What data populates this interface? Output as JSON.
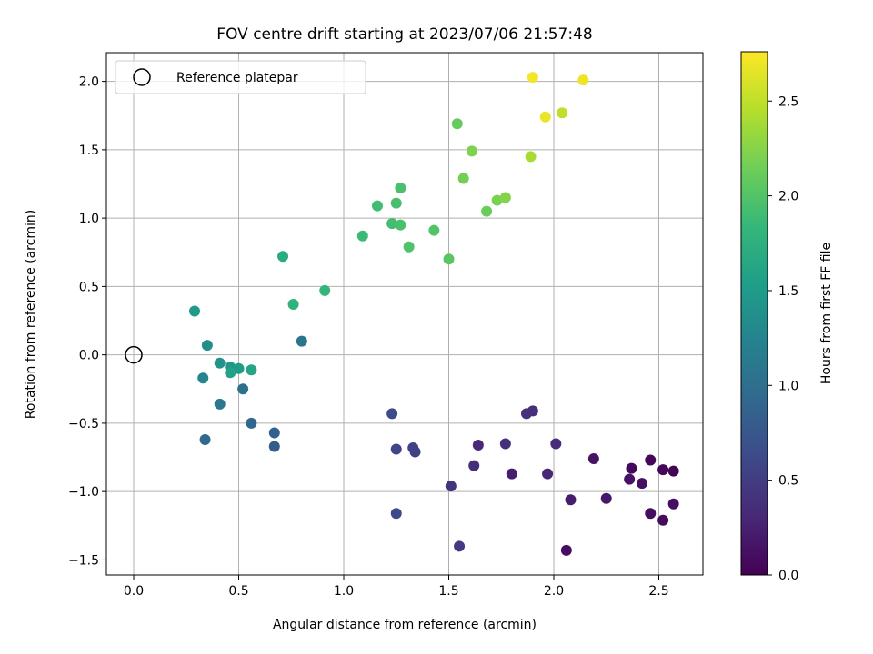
{
  "chart_data": {
    "type": "scatter",
    "title": "FOV centre drift starting at 2023/07/06 21:57:48",
    "xlabel": "Angular distance from reference (arcmin)",
    "ylabel": "Rotation from reference (arcmin)",
    "xlim": [
      -0.13,
      2.71
    ],
    "ylim": [
      -1.61,
      2.21
    ],
    "xticks": [
      0.0,
      0.5,
      1.0,
      1.5,
      2.0,
      2.5
    ],
    "yticks": [
      -1.5,
      -1.0,
      -0.5,
      0.0,
      0.5,
      1.0,
      1.5,
      2.0
    ],
    "xtick_labels": [
      "0.0",
      "0.5",
      "1.0",
      "1.5",
      "2.0",
      "2.5"
    ],
    "ytick_labels": [
      "−1.5",
      "−1.0",
      "−0.5",
      "0.0",
      "0.5",
      "1.0",
      "1.5",
      "2.0"
    ],
    "grid": true,
    "legend": {
      "placement": "upper-left",
      "entries": [
        "Reference platepar"
      ]
    },
    "reference_point": {
      "x": 0.0,
      "y": 0.0,
      "marker": "hollow-circle"
    },
    "colorbar": {
      "label": "Hours from first FF file",
      "colormap": "viridis",
      "range": [
        0.0,
        2.76
      ],
      "ticks": [
        0.0,
        0.5,
        1.0,
        1.5,
        2.0,
        2.5
      ],
      "tick_labels": [
        "0.0",
        "0.5",
        "1.0",
        "1.5",
        "2.0",
        "2.5"
      ]
    },
    "colormap_stops": [
      "#440154",
      "#482878",
      "#3e4989",
      "#31688e",
      "#26828e",
      "#1f9e89",
      "#35b779",
      "#6ece58",
      "#b5de2b",
      "#fde725"
    ],
    "points": [
      {
        "x": 2.06,
        "y": -1.43,
        "c": 0.1
      },
      {
        "x": 2.52,
        "y": -1.21,
        "c": 0.08
      },
      {
        "x": 2.46,
        "y": -1.16,
        "c": 0.1
      },
      {
        "x": 2.57,
        "y": -1.09,
        "c": 0.12
      },
      {
        "x": 2.25,
        "y": -1.05,
        "c": 0.18
      },
      {
        "x": 2.08,
        "y": -1.06,
        "c": 0.22
      },
      {
        "x": 2.42,
        "y": -0.94,
        "c": 0.1
      },
      {
        "x": 2.36,
        "y": -0.91,
        "c": 0.13
      },
      {
        "x": 2.37,
        "y": -0.83,
        "c": 0.06
      },
      {
        "x": 2.52,
        "y": -0.84,
        "c": 0.04
      },
      {
        "x": 2.57,
        "y": -0.85,
        "c": 0.02
      },
      {
        "x": 2.46,
        "y": -0.77,
        "c": 0.05
      },
      {
        "x": 2.19,
        "y": -0.76,
        "c": 0.14
      },
      {
        "x": 1.97,
        "y": -0.87,
        "c": 0.3
      },
      {
        "x": 2.01,
        "y": -0.65,
        "c": 0.34
      },
      {
        "x": 1.8,
        "y": -0.87,
        "c": 0.22
      },
      {
        "x": 1.77,
        "y": -0.65,
        "c": 0.38
      },
      {
        "x": 1.87,
        "y": -0.43,
        "c": 0.4
      },
      {
        "x": 1.9,
        "y": -0.41,
        "c": 0.38
      },
      {
        "x": 1.64,
        "y": -0.66,
        "c": 0.32
      },
      {
        "x": 1.62,
        "y": -0.81,
        "c": 0.36
      },
      {
        "x": 1.51,
        "y": -0.96,
        "c": 0.42
      },
      {
        "x": 1.55,
        "y": -1.4,
        "c": 0.48
      },
      {
        "x": 1.34,
        "y": -0.71,
        "c": 0.52
      },
      {
        "x": 1.33,
        "y": -0.68,
        "c": 0.55
      },
      {
        "x": 1.25,
        "y": -0.69,
        "c": 0.58
      },
      {
        "x": 1.23,
        "y": -0.43,
        "c": 0.62
      },
      {
        "x": 1.25,
        "y": -1.16,
        "c": 0.64
      },
      {
        "x": 0.67,
        "y": -0.67,
        "c": 0.8
      },
      {
        "x": 0.67,
        "y": -0.57,
        "c": 0.84
      },
      {
        "x": 0.56,
        "y": -0.5,
        "c": 0.92
      },
      {
        "x": 0.34,
        "y": -0.62,
        "c": 0.96
      },
      {
        "x": 0.52,
        "y": -0.25,
        "c": 1.0
      },
      {
        "x": 0.41,
        "y": -0.36,
        "c": 1.1
      },
      {
        "x": 0.8,
        "y": 0.1,
        "c": 1.08
      },
      {
        "x": 0.33,
        "y": -0.17,
        "c": 1.25
      },
      {
        "x": 0.35,
        "y": 0.07,
        "c": 1.35
      },
      {
        "x": 0.41,
        "y": -0.06,
        "c": 1.4
      },
      {
        "x": 0.46,
        "y": -0.09,
        "c": 1.45
      },
      {
        "x": 0.5,
        "y": -0.1,
        "c": 1.52
      },
      {
        "x": 0.46,
        "y": -0.13,
        "c": 1.58
      },
      {
        "x": 0.56,
        "y": -0.11,
        "c": 1.62
      },
      {
        "x": 0.29,
        "y": 0.32,
        "c": 1.5
      },
      {
        "x": 0.71,
        "y": 0.72,
        "c": 1.7
      },
      {
        "x": 0.76,
        "y": 0.37,
        "c": 1.78
      },
      {
        "x": 0.91,
        "y": 0.47,
        "c": 1.82
      },
      {
        "x": 1.09,
        "y": 0.87,
        "c": 1.88
      },
      {
        "x": 1.16,
        "y": 1.09,
        "c": 1.9
      },
      {
        "x": 1.23,
        "y": 0.96,
        "c": 1.92
      },
      {
        "x": 1.25,
        "y": 1.11,
        "c": 1.94
      },
      {
        "x": 1.27,
        "y": 0.95,
        "c": 1.96
      },
      {
        "x": 1.27,
        "y": 1.22,
        "c": 1.96
      },
      {
        "x": 1.31,
        "y": 0.79,
        "c": 1.98
      },
      {
        "x": 1.43,
        "y": 0.91,
        "c": 2.0
      },
      {
        "x": 1.5,
        "y": 0.7,
        "c": 2.04
      },
      {
        "x": 1.54,
        "y": 1.69,
        "c": 2.1
      },
      {
        "x": 1.57,
        "y": 1.29,
        "c": 2.16
      },
      {
        "x": 1.61,
        "y": 1.49,
        "c": 2.22
      },
      {
        "x": 1.68,
        "y": 1.05,
        "c": 2.12
      },
      {
        "x": 1.73,
        "y": 1.13,
        "c": 2.2
      },
      {
        "x": 1.77,
        "y": 1.15,
        "c": 2.24
      },
      {
        "x": 1.89,
        "y": 1.45,
        "c": 2.4
      },
      {
        "x": 2.04,
        "y": 1.77,
        "c": 2.5
      },
      {
        "x": 1.96,
        "y": 1.74,
        "c": 2.68
      },
      {
        "x": 1.9,
        "y": 2.03,
        "c": 2.72
      },
      {
        "x": 2.14,
        "y": 2.01,
        "c": 2.7
      }
    ]
  }
}
